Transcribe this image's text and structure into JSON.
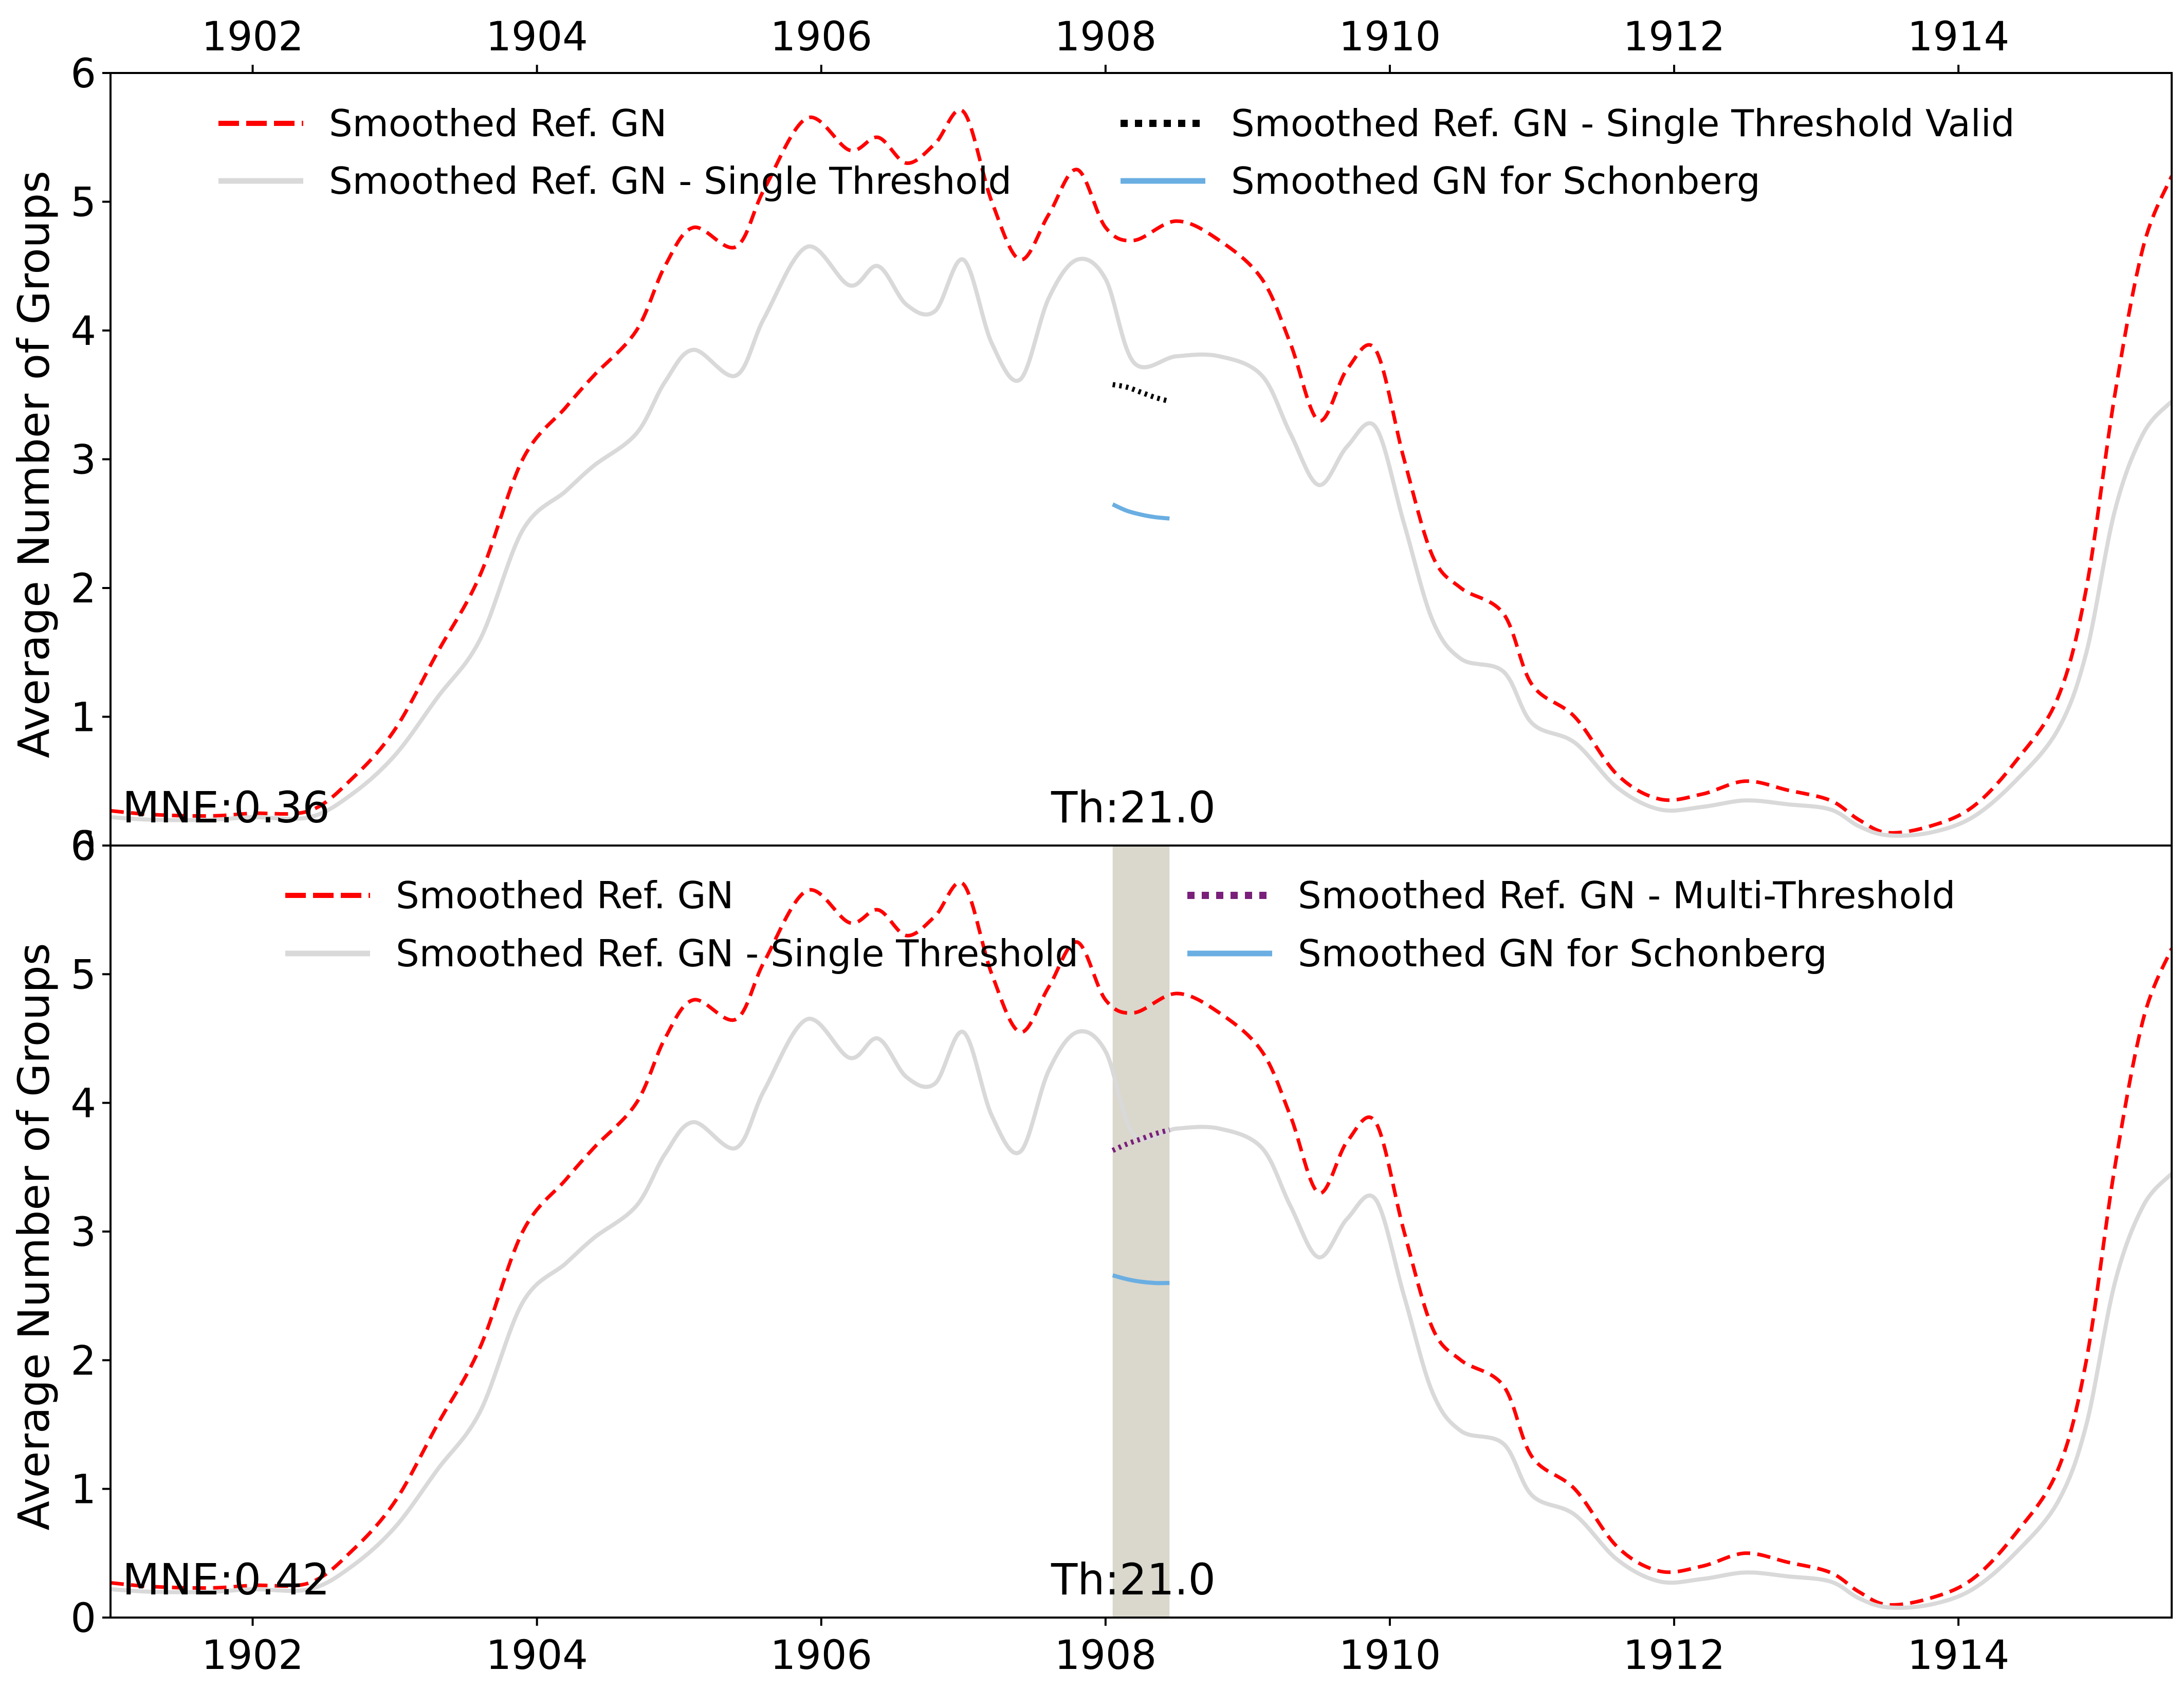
{
  "colors": {
    "ref_gn": "#ff0000",
    "ref_single": "#d9d9d9",
    "single_valid": "#000000",
    "multi": "#7a1f7a",
    "schonberg": "#6aaee2",
    "shade": "#b5b09a"
  },
  "chart_data": [
    {
      "type": "line",
      "ylabel": "Average Number of Groups",
      "xlim": [
        1901.0,
        1915.5
      ],
      "ylim": [
        0,
        6
      ],
      "x_ticks": [
        "1902",
        "1904",
        "1906",
        "1908",
        "1910",
        "1912",
        "1914"
      ],
      "x_tick_values": [
        1902,
        1904,
        1906,
        1908,
        1910,
        1912,
        1914
      ],
      "y_ticks": [
        "0",
        "1",
        "2",
        "3",
        "4",
        "5",
        "6"
      ],
      "x_axis_position": "top",
      "legend": [
        "Smoothed Ref. GN",
        "Smoothed Ref. GN - Single Threshold",
        "Smoothed Ref. GN - Single Threshold Valid",
        "Smoothed GN for Schonberg"
      ],
      "legend_placement": "top",
      "annotations": {
        "mne": "MNE:0.36",
        "threshold": "Th:21.0"
      },
      "series": [
        {
          "name": "Smoothed Ref. GN",
          "style": "dashed",
          "color": "#ff0000",
          "x": [
            1901.0,
            1901.3,
            1901.7,
            1902.0,
            1902.4,
            1902.7,
            1903.0,
            1903.3,
            1903.6,
            1903.9,
            1904.2,
            1904.4,
            1904.7,
            1904.9,
            1905.1,
            1905.4,
            1905.6,
            1905.9,
            1906.2,
            1906.4,
            1906.6,
            1906.8,
            1907.0,
            1907.2,
            1907.4,
            1907.6,
            1907.8,
            1908.0,
            1908.2,
            1908.5,
            1908.8,
            1909.1,
            1909.3,
            1909.5,
            1909.7,
            1909.9,
            1910.1,
            1910.3,
            1910.5,
            1910.8,
            1911.0,
            1911.3,
            1911.6,
            1911.9,
            1912.2,
            1912.5,
            1912.8,
            1913.1,
            1913.3,
            1913.5,
            1913.8,
            1914.1,
            1914.4,
            1914.7,
            1914.9,
            1915.1,
            1915.3,
            1915.5
          ],
          "y": [
            0.27,
            0.24,
            0.23,
            0.25,
            0.27,
            0.52,
            0.9,
            1.5,
            2.1,
            3.0,
            3.4,
            3.65,
            4.0,
            4.5,
            4.8,
            4.65,
            5.1,
            5.65,
            5.4,
            5.5,
            5.3,
            5.45,
            5.7,
            5.0,
            4.55,
            4.9,
            5.25,
            4.8,
            4.7,
            4.85,
            4.7,
            4.4,
            3.9,
            3.3,
            3.7,
            3.85,
            3.0,
            2.25,
            2.0,
            1.8,
            1.25,
            1.0,
            0.55,
            0.36,
            0.4,
            0.5,
            0.43,
            0.35,
            0.2,
            0.1,
            0.15,
            0.3,
            0.65,
            1.15,
            2.0,
            3.5,
            4.65,
            5.2
          ]
        },
        {
          "name": "Smoothed Ref. GN - Single Threshold",
          "style": "solid",
          "color": "#d9d9d9",
          "x": [
            1901.0,
            1901.3,
            1901.7,
            1902.0,
            1902.4,
            1902.7,
            1903.0,
            1903.3,
            1903.6,
            1903.9,
            1904.2,
            1904.4,
            1904.7,
            1904.9,
            1905.1,
            1905.4,
            1905.6,
            1905.9,
            1906.2,
            1906.4,
            1906.6,
            1906.8,
            1907.0,
            1907.2,
            1907.4,
            1907.6,
            1907.8,
            1908.0,
            1908.2,
            1908.5,
            1908.8,
            1909.1,
            1909.3,
            1909.5,
            1909.7,
            1909.9,
            1910.1,
            1910.3,
            1910.5,
            1910.8,
            1911.0,
            1911.3,
            1911.6,
            1911.9,
            1912.2,
            1912.5,
            1912.8,
            1913.1,
            1913.3,
            1913.5,
            1913.8,
            1914.1,
            1914.4,
            1914.7,
            1914.9,
            1915.1,
            1915.3,
            1915.5
          ],
          "y": [
            0.22,
            0.2,
            0.2,
            0.22,
            0.22,
            0.4,
            0.7,
            1.15,
            1.6,
            2.45,
            2.75,
            2.95,
            3.2,
            3.6,
            3.85,
            3.65,
            4.1,
            4.65,
            4.35,
            4.5,
            4.2,
            4.15,
            4.55,
            3.9,
            3.62,
            4.25,
            4.55,
            4.4,
            3.75,
            3.8,
            3.8,
            3.65,
            3.2,
            2.8,
            3.1,
            3.25,
            2.5,
            1.75,
            1.45,
            1.35,
            0.95,
            0.8,
            0.45,
            0.28,
            0.3,
            0.35,
            0.32,
            0.28,
            0.15,
            0.08,
            0.1,
            0.22,
            0.5,
            0.9,
            1.5,
            2.6,
            3.2,
            3.45
          ]
        },
        {
          "name": "Smoothed Ref. GN - Single Threshold Valid",
          "style": "dotted",
          "color": "#000000",
          "x": [
            1908.05,
            1908.15,
            1908.25,
            1908.35,
            1908.45
          ],
          "y": [
            3.58,
            3.56,
            3.52,
            3.48,
            3.45
          ]
        },
        {
          "name": "Smoothed GN for Schonberg",
          "style": "solid",
          "color": "#6aaee2",
          "x": [
            1908.05,
            1908.15,
            1908.25,
            1908.35,
            1908.45
          ],
          "y": [
            2.65,
            2.6,
            2.57,
            2.55,
            2.54
          ]
        }
      ]
    },
    {
      "type": "line",
      "ylabel": "Average Number of Groups",
      "xlim": [
        1901.0,
        1915.5
      ],
      "ylim": [
        0,
        6
      ],
      "x_ticks": [
        "1902",
        "1904",
        "1906",
        "1908",
        "1910",
        "1912",
        "1914"
      ],
      "x_tick_values": [
        1902,
        1904,
        1906,
        1908,
        1910,
        1912,
        1914
      ],
      "y_ticks": [
        "0",
        "1",
        "2",
        "3",
        "4",
        "5",
        "6"
      ],
      "x_axis_position": "bottom",
      "legend": [
        "Smoothed Ref. GN",
        "Smoothed Ref. GN - Single Threshold",
        "Smoothed Ref. GN - Multi-Threshold",
        "Smoothed GN for Schonberg"
      ],
      "legend_placement": "top",
      "annotations": {
        "mne": "MNE:0.42",
        "threshold": "Th:21.0"
      },
      "shaded_region": [
        1908.05,
        1908.45
      ],
      "series": [
        {
          "name": "Smoothed Ref. GN",
          "style": "dashed",
          "color": "#ff0000",
          "x": [
            1901.0,
            1901.3,
            1901.7,
            1902.0,
            1902.4,
            1902.7,
            1903.0,
            1903.3,
            1903.6,
            1903.9,
            1904.2,
            1904.4,
            1904.7,
            1904.9,
            1905.1,
            1905.4,
            1905.6,
            1905.9,
            1906.2,
            1906.4,
            1906.6,
            1906.8,
            1907.0,
            1907.2,
            1907.4,
            1907.6,
            1907.8,
            1908.0,
            1908.2,
            1908.5,
            1908.8,
            1909.1,
            1909.3,
            1909.5,
            1909.7,
            1909.9,
            1910.1,
            1910.3,
            1910.5,
            1910.8,
            1911.0,
            1911.3,
            1911.6,
            1911.9,
            1912.2,
            1912.5,
            1912.8,
            1913.1,
            1913.3,
            1913.5,
            1913.8,
            1914.1,
            1914.4,
            1914.7,
            1914.9,
            1915.1,
            1915.3,
            1915.5
          ],
          "y": [
            0.27,
            0.24,
            0.23,
            0.25,
            0.27,
            0.52,
            0.9,
            1.5,
            2.1,
            3.0,
            3.4,
            3.65,
            4.0,
            4.5,
            4.8,
            4.65,
            5.1,
            5.65,
            5.4,
            5.5,
            5.3,
            5.45,
            5.7,
            5.0,
            4.55,
            4.9,
            5.25,
            4.8,
            4.7,
            4.85,
            4.7,
            4.4,
            3.9,
            3.3,
            3.7,
            3.85,
            3.0,
            2.25,
            2.0,
            1.8,
            1.25,
            1.0,
            0.55,
            0.36,
            0.4,
            0.5,
            0.43,
            0.35,
            0.2,
            0.1,
            0.15,
            0.3,
            0.65,
            1.15,
            2.0,
            3.5,
            4.65,
            5.2
          ]
        },
        {
          "name": "Smoothed Ref. GN - Single Threshold",
          "style": "solid",
          "color": "#d9d9d9",
          "x": [
            1901.0,
            1901.3,
            1901.7,
            1902.0,
            1902.4,
            1902.7,
            1903.0,
            1903.3,
            1903.6,
            1903.9,
            1904.2,
            1904.4,
            1904.7,
            1904.9,
            1905.1,
            1905.4,
            1905.6,
            1905.9,
            1906.2,
            1906.4,
            1906.6,
            1906.8,
            1907.0,
            1907.2,
            1907.4,
            1907.6,
            1907.8,
            1908.0,
            1908.2,
            1908.5,
            1908.8,
            1909.1,
            1909.3,
            1909.5,
            1909.7,
            1909.9,
            1910.1,
            1910.3,
            1910.5,
            1910.8,
            1911.0,
            1911.3,
            1911.6,
            1911.9,
            1912.2,
            1912.5,
            1912.8,
            1913.1,
            1913.3,
            1913.5,
            1913.8,
            1914.1,
            1914.4,
            1914.7,
            1914.9,
            1915.1,
            1915.3,
            1915.5
          ],
          "y": [
            0.22,
            0.2,
            0.2,
            0.22,
            0.22,
            0.4,
            0.7,
            1.15,
            1.6,
            2.45,
            2.75,
            2.95,
            3.2,
            3.6,
            3.85,
            3.65,
            4.1,
            4.65,
            4.35,
            4.5,
            4.2,
            4.15,
            4.55,
            3.9,
            3.62,
            4.25,
            4.55,
            4.4,
            3.75,
            3.8,
            3.8,
            3.65,
            3.2,
            2.8,
            3.1,
            3.25,
            2.5,
            1.75,
            1.45,
            1.35,
            0.95,
            0.8,
            0.45,
            0.28,
            0.3,
            0.35,
            0.32,
            0.28,
            0.15,
            0.08,
            0.1,
            0.22,
            0.5,
            0.9,
            1.5,
            2.6,
            3.2,
            3.45
          ]
        },
        {
          "name": "Smoothed Ref. GN - Multi-Threshold",
          "style": "dotted",
          "color": "#7a1f7a",
          "x": [
            1908.05,
            1908.15,
            1908.25,
            1908.35,
            1908.45
          ],
          "y": [
            3.63,
            3.68,
            3.72,
            3.76,
            3.79
          ]
        },
        {
          "name": "Smoothed GN for Schonberg",
          "style": "solid",
          "color": "#6aaee2",
          "x": [
            1908.05,
            1908.15,
            1908.25,
            1908.35,
            1908.45
          ],
          "y": [
            2.66,
            2.63,
            2.61,
            2.6,
            2.6
          ]
        }
      ]
    }
  ]
}
